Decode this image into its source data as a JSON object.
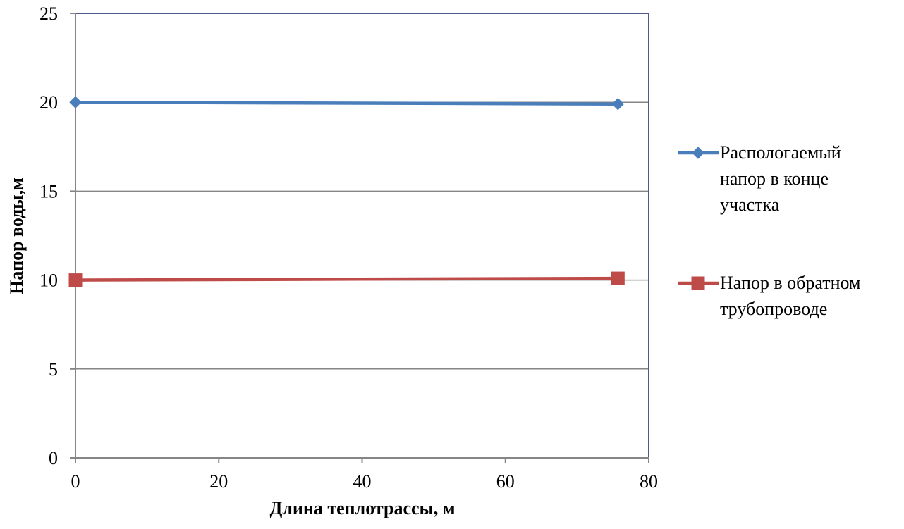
{
  "chart_data": {
    "type": "line",
    "title": "",
    "xlabel": "Длина теплотрассы, м",
    "ylabel": "Напор воды,м",
    "xlim": [
      0,
      80
    ],
    "ylim": [
      0,
      25
    ],
    "xticks": [
      0,
      20,
      40,
      60,
      80
    ],
    "yticks": [
      0,
      5,
      10,
      15,
      20,
      25
    ],
    "grid": "horizontal",
    "legend_position": "right",
    "series": [
      {
        "name": "Распологаемый напор в конце участка",
        "legend_lines": [
          "Распологаемый",
          "напор в конце",
          "участка"
        ],
        "marker": "diamond",
        "color": "#4A7EBB",
        "points": [
          {
            "x": 0,
            "y": 20.0
          },
          {
            "x": 75.7,
            "y": 19.9
          }
        ]
      },
      {
        "name": "Напор в обратном трубопроводе",
        "legend_lines": [
          "Напор в обратном",
          "трубопроводе"
        ],
        "marker": "square",
        "color": "#BE4B48",
        "points": [
          {
            "x": 0,
            "y": 10.0
          },
          {
            "x": 75.7,
            "y": 10.1
          }
        ]
      }
    ],
    "colors": {
      "grid": "#868686",
      "plot_border": "#4F5A8C",
      "axis": "#868686"
    }
  }
}
